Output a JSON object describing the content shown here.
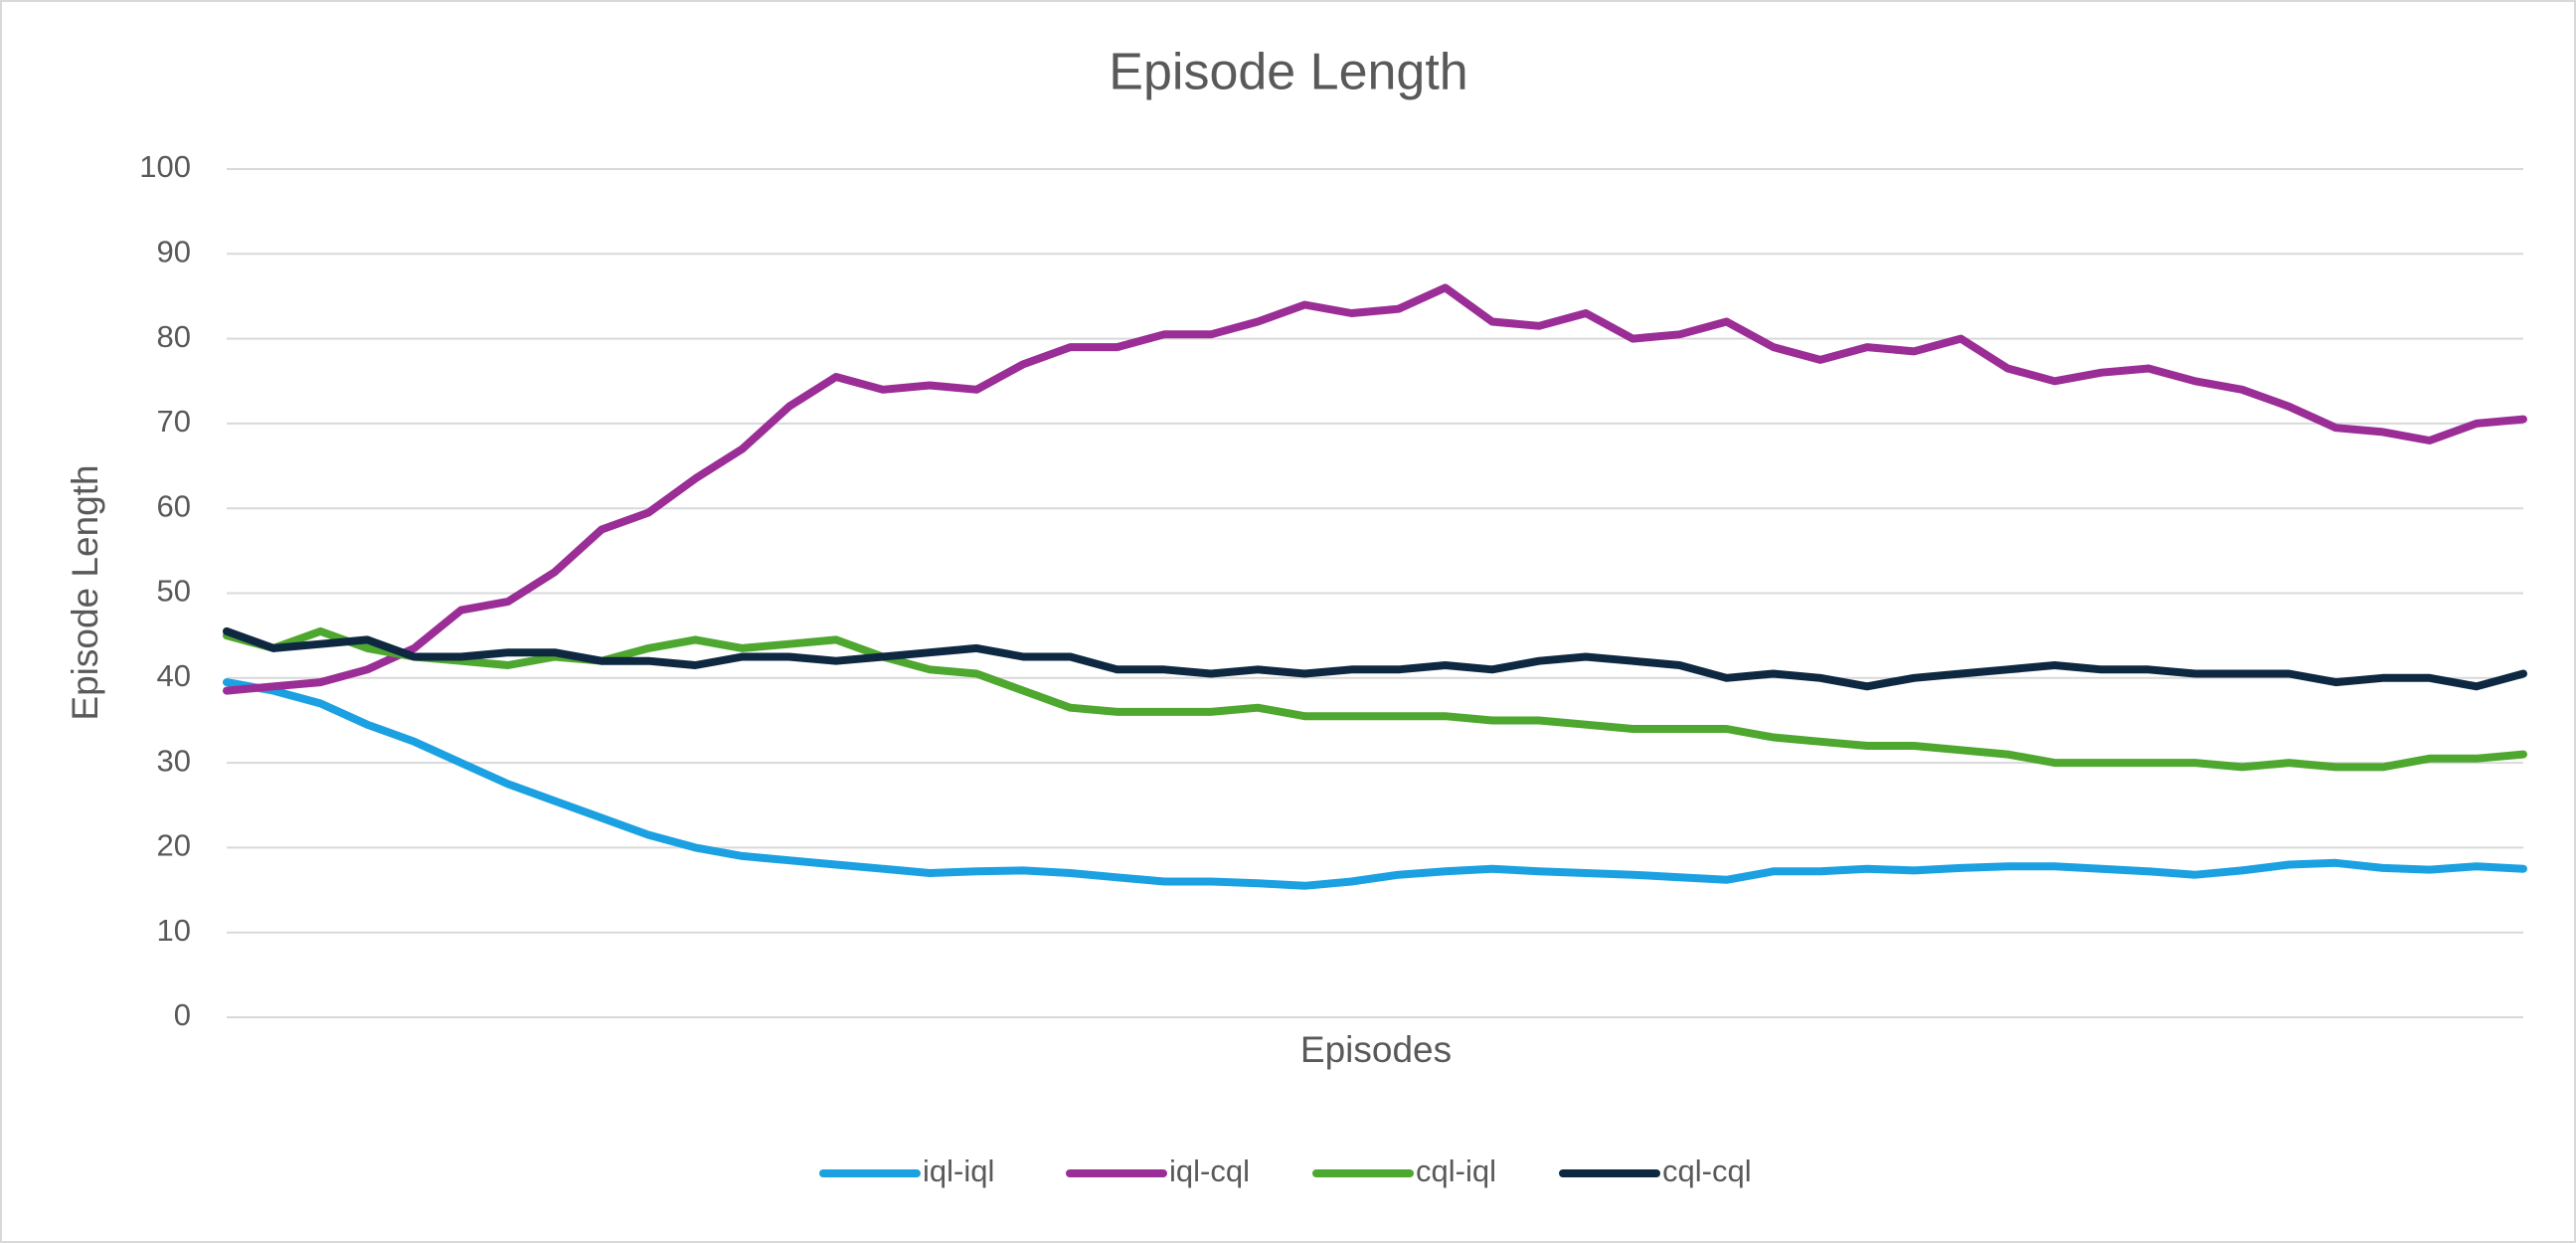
{
  "chart_data": {
    "type": "line",
    "title": "Episode Length",
    "x_label": "Episodes",
    "y_label": "Episode Length",
    "categories": [
      null,
      null,
      null,
      null,
      null,
      null,
      null,
      null,
      null,
      null,
      null,
      null,
      null,
      null,
      null,
      null,
      null,
      null,
      null,
      null,
      null,
      null,
      null,
      null,
      null,
      null,
      null,
      null,
      null,
      null,
      null,
      null,
      null,
      null,
      null,
      null,
      null,
      null,
      null,
      null,
      null,
      null,
      null,
      null,
      null,
      null,
      null,
      null,
      null,
      null
    ],
    "ylim": [
      0,
      100
    ],
    "yticks": [
      0,
      10,
      20,
      30,
      40,
      50,
      60,
      70,
      80,
      90,
      100
    ],
    "grid": true,
    "legend": "bottom",
    "series": [
      {
        "name": "iql-iql",
        "color": "#1ba1e2",
        "values": [
          39.5,
          38.5,
          37,
          34.5,
          32.5,
          30,
          27.5,
          25.5,
          23.5,
          21.5,
          20,
          19,
          18.5,
          18,
          17.5,
          17,
          17.2,
          17.3,
          17,
          16.5,
          16,
          16,
          15.8,
          15.5,
          16,
          16.8,
          17.2,
          17.5,
          17.2,
          17,
          16.8,
          16.5,
          16.2,
          17.2,
          17.2,
          17.5,
          17.3,
          17.6,
          17.8,
          17.8,
          17.5,
          17.2,
          16.8,
          17.3,
          18,
          18.2,
          17.6,
          17.4,
          17.8,
          17.5
        ]
      },
      {
        "name": "iql-cql",
        "color": "#9b2d96",
        "values": [
          38.5,
          39,
          39.5,
          41,
          43.5,
          48,
          49,
          52.5,
          57.5,
          59.5,
          63.5,
          67,
          72,
          75.5,
          74,
          74.5,
          74,
          77,
          79,
          79,
          80.5,
          80.5,
          82,
          84,
          83,
          83.5,
          86,
          82,
          81.5,
          83,
          80,
          80.5,
          82,
          79,
          77.5,
          79,
          78.5,
          80,
          76.5,
          75,
          76,
          76.5,
          75,
          74,
          72,
          69.5,
          69,
          68,
          70,
          70.5
        ]
      },
      {
        "name": "cql-iql",
        "color": "#4ea72e",
        "values": [
          45,
          43.5,
          45.5,
          43.5,
          42.5,
          42,
          41.5,
          42.5,
          42,
          43.5,
          44.5,
          43.5,
          44,
          44.5,
          42.5,
          41,
          40.5,
          38.5,
          36.5,
          36,
          36,
          36,
          36.5,
          35.5,
          35.5,
          35.5,
          35.5,
          35,
          35,
          34.5,
          34,
          34,
          34,
          33,
          32.5,
          32,
          32,
          31.5,
          31,
          30,
          30,
          30,
          30,
          29.5,
          30,
          29.5,
          29.5,
          30.5,
          30.5,
          31
        ]
      },
      {
        "name": "cql-cql",
        "color": "#0e2841",
        "values": [
          45.5,
          43.5,
          44,
          44.5,
          42.5,
          42.5,
          43,
          43,
          42,
          42,
          41.5,
          42.5,
          42.5,
          42,
          42.5,
          43,
          43.5,
          42.5,
          42.5,
          41,
          41,
          40.5,
          41,
          40.5,
          41,
          41,
          41.5,
          41,
          42,
          42.5,
          42,
          41.5,
          40,
          40.5,
          40,
          39,
          40,
          40.5,
          41,
          41.5,
          41,
          41,
          40.5,
          40.5,
          40.5,
          39.5,
          40,
          40,
          39,
          40.5
        ]
      }
    ]
  }
}
